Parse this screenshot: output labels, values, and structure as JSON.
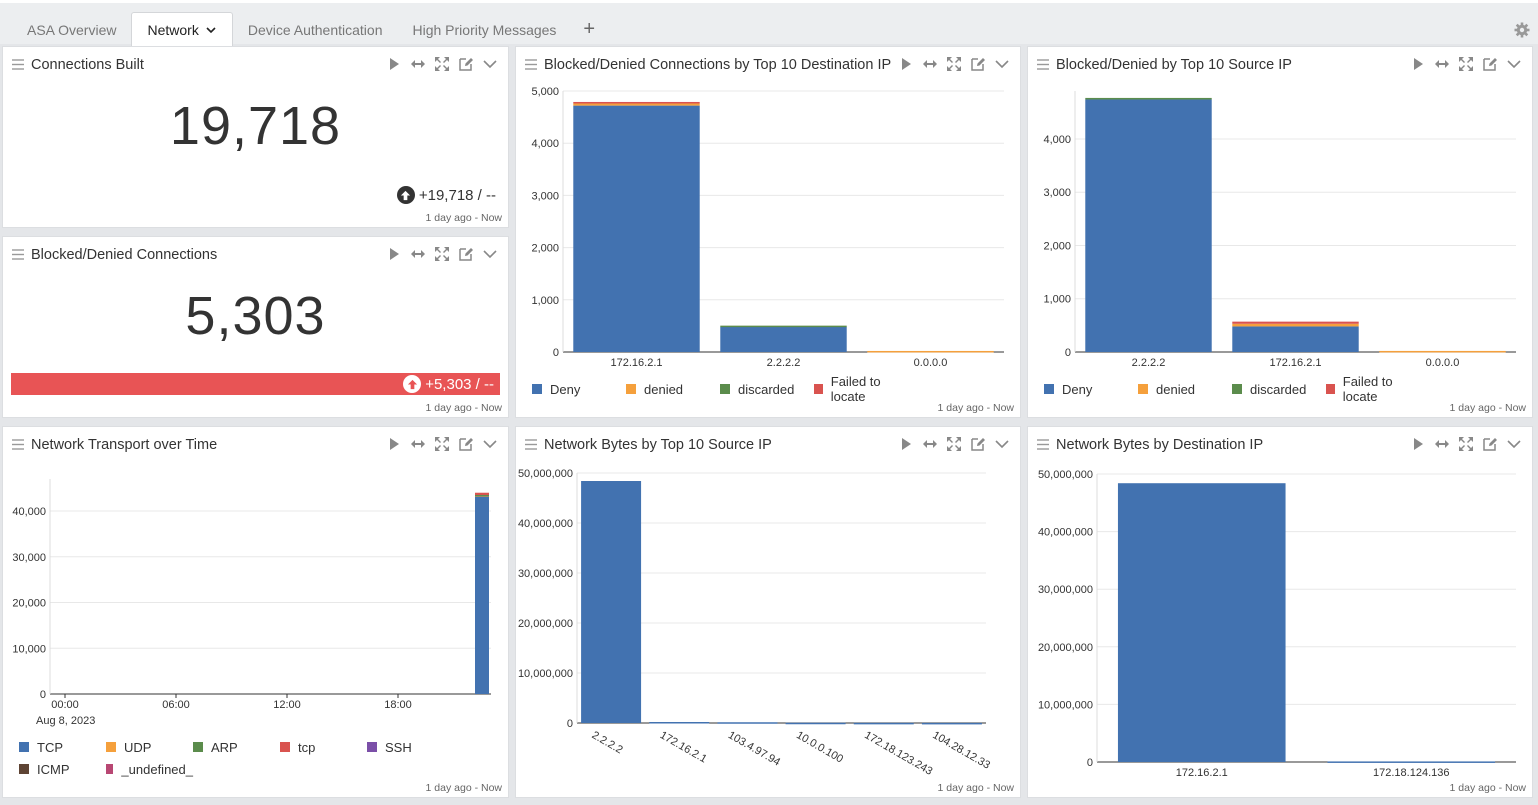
{
  "tabs": [
    {
      "label": "ASA Overview"
    },
    {
      "label": "Network"
    },
    {
      "label": "Device Authentication"
    },
    {
      "label": "High Priority Messages"
    }
  ],
  "tab_add": "+",
  "icons": [
    "menu-icon",
    "play-icon",
    "resize-horizontal-icon",
    "expand-icon",
    "edit-icon",
    "chevron-down-icon",
    "gear-icon",
    "arrow-up-icon"
  ],
  "panels": {
    "connections_built": {
      "title": "Connections Built",
      "value": "19,718",
      "trend": "+19,718 / --",
      "time": "1 day ago - Now"
    },
    "blocked_conn": {
      "title": "Blocked/Denied Connections",
      "value": "5,303",
      "trend": "+5,303 / --",
      "time": "1 day ago - Now"
    },
    "dest_ip": {
      "title": "Blocked/Denied Connections by Top 10 Destination IP",
      "time": "1 day ago - Now"
    },
    "src_ip": {
      "title": "Blocked/Denied by Top 10 Source IP",
      "time": "1 day ago - Now"
    },
    "transport": {
      "title": "Network Transport over Time",
      "time": "1 day ago - Now"
    },
    "bytes_src": {
      "title": "Network Bytes by Top 10 Source IP",
      "time": "1 day ago - Now"
    },
    "bytes_dst": {
      "title": "Network Bytes by Destination IP",
      "time": "1 day ago - Now"
    }
  },
  "chart_data": [
    {
      "id": "dest_ip",
      "type": "bar",
      "stacked": true,
      "categories": [
        "172.16.2.1",
        "2.2.2.2",
        "0.0.0.0"
      ],
      "series": [
        {
          "name": "Deny",
          "color": "#4272b0",
          "values": [
            4720,
            480,
            0
          ]
        },
        {
          "name": "denied",
          "color": "#f5a03c",
          "values": [
            40,
            0,
            20
          ]
        },
        {
          "name": "discarded",
          "color": "#5b8c4c",
          "values": [
            0,
            25,
            0
          ]
        },
        {
          "name": "Failed to locate",
          "color": "#d9534f",
          "values": [
            30,
            0,
            0
          ]
        }
      ],
      "ylim": [
        0,
        5000
      ],
      "yticks": [
        "0",
        "1,000",
        "2,000",
        "3,000",
        "4,000",
        "5,000"
      ],
      "grid": true,
      "legend": "bottom"
    },
    {
      "id": "src_ip",
      "type": "bar",
      "stacked": true,
      "categories": [
        "2.2.2.2",
        "172.16.2.1",
        "0.0.0.0"
      ],
      "series": [
        {
          "name": "Deny",
          "color": "#4272b0",
          "values": [
            4740,
            480,
            0
          ]
        },
        {
          "name": "denied",
          "color": "#f5a03c",
          "values": [
            0,
            50,
            20
          ]
        },
        {
          "name": "discarded",
          "color": "#5b8c4c",
          "values": [
            30,
            0,
            0
          ]
        },
        {
          "name": "Failed to locate",
          "color": "#d9534f",
          "values": [
            0,
            40,
            0
          ]
        }
      ],
      "ylim": [
        0,
        4900
      ],
      "yticks": [
        "0",
        "1,000",
        "2,000",
        "3,000",
        "4,000"
      ],
      "grid": true,
      "legend": "bottom"
    },
    {
      "id": "transport",
      "type": "bar",
      "stacked": true,
      "x_ticks": [
        "00:00",
        "06:00",
        "12:00",
        "18:00"
      ],
      "x_sub": "Aug 8, 2023",
      "series": [
        {
          "name": "TCP",
          "color": "#4272b0",
          "values": [
            43200
          ]
        },
        {
          "name": "UDP",
          "color": "#f5a03c",
          "values": [
            200
          ]
        },
        {
          "name": "ARP",
          "color": "#5b8c4c",
          "values": [
            100
          ]
        },
        {
          "name": "tcp",
          "color": "#d9534f",
          "values": [
            500
          ]
        },
        {
          "name": "SSH",
          "color": "#7b4fa8",
          "values": [
            0
          ]
        },
        {
          "name": "ICMP",
          "color": "#5e4434",
          "values": [
            0
          ]
        },
        {
          "name": "_undefined_",
          "color": "#b84773",
          "values": [
            0
          ]
        }
      ],
      "ylim": [
        0,
        47000
      ],
      "yticks": [
        "0",
        "10,000",
        "20,000",
        "30,000",
        "40,000"
      ],
      "grid": true,
      "legend": "bottom"
    },
    {
      "id": "bytes_src",
      "type": "bar",
      "categories": [
        "2.2.2.2",
        "172.16.2.1",
        "103.4.97.94",
        "10.0.0.100",
        "172.18.123.243",
        "104.28.12.33"
      ],
      "values": [
        48400000,
        200000,
        150000,
        50000,
        30000,
        20000
      ],
      "color": "#4272b0",
      "ylim": [
        0,
        50000000
      ],
      "yticks": [
        "0",
        "10,000,000",
        "20,000,000",
        "30,000,000",
        "40,000,000",
        "50,000,000"
      ],
      "grid": true
    },
    {
      "id": "bytes_dst",
      "type": "bar",
      "categories": [
        "172.16.2.1",
        "172.18.124.136"
      ],
      "values": [
        48400000,
        100000
      ],
      "color": "#4272b0",
      "ylim": [
        0,
        50000000
      ],
      "yticks": [
        "0",
        "10,000,000",
        "20,000,000",
        "30,000,000",
        "40,000,000",
        "50,000,000"
      ],
      "grid": true
    }
  ]
}
